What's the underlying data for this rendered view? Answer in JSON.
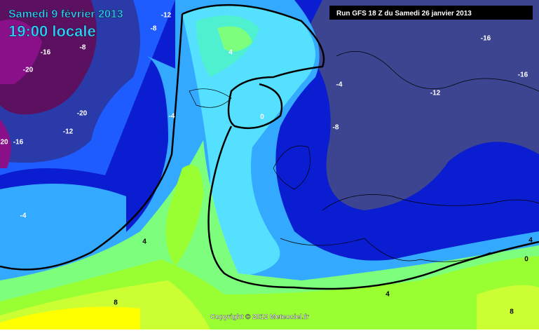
{
  "header": {
    "date": "Samedi 9 février 2013",
    "time": "19:00 locale",
    "run": "Run GFS 18 Z du Samedi 26 janvier 2013"
  },
  "footer": {
    "copyright": "Copyright © 2012 Meteociel.fr"
  },
  "contour_labels": [
    -12,
    -8,
    -8,
    -16,
    -20,
    4,
    -16,
    -16,
    -4,
    -12,
    -20,
    -4,
    0,
    -8,
    -12,
    20,
    -16,
    -4,
    4,
    4,
    0,
    4,
    8,
    8
  ]
}
